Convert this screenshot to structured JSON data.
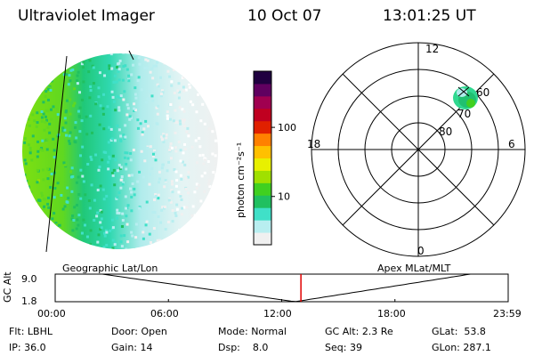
{
  "header": {
    "title": "Ultraviolet Imager",
    "date": "10 Oct 07",
    "time": "13:01:25 UT"
  },
  "colorbar": {
    "label": "photon cm⁻²s⁻¹",
    "ticks": [
      "100",
      "10"
    ],
    "tick_values": [
      100,
      10
    ],
    "range": [
      2,
      650
    ],
    "scale": "log",
    "colors": [
      "#f0f0f0",
      "#b8eef0",
      "#40e0c8",
      "#20c060",
      "#40d020",
      "#a0e000",
      "#e8f000",
      "#ffc000",
      "#ff8000",
      "#e02000",
      "#c00020",
      "#a00050",
      "#600060",
      "#200040"
    ]
  },
  "polar_plot": {
    "mlt_labels": {
      "top": "12",
      "right": "6",
      "bottom": "0",
      "left": "18"
    },
    "lat_labels": [
      "60",
      "70",
      "80"
    ],
    "lat_values": [
      60,
      70,
      80
    ]
  },
  "timeline": {
    "left_label": "Geographic Lat/Lon",
    "right_label": "Apex MLat/MLT",
    "y_axis_label": "GC Alt",
    "y_ticks": [
      "9.0",
      "1.8"
    ],
    "y_values": [
      9.0,
      1.8
    ],
    "x_ticks": [
      "00:00",
      "06:00",
      "12:00",
      "18:00",
      "23:59"
    ],
    "current_time_hours": 13.02,
    "marker_color": "#e00000"
  },
  "info": {
    "filter_label": "Flt:",
    "filter": "LBHL",
    "ip_label": "IP:",
    "ip": "36.0",
    "door_label": "Door:",
    "door": "Open",
    "gain_label": "Gain:",
    "gain": "14",
    "mode_label": "Mode:",
    "mode": "Normal",
    "dsp_label": "Dsp:",
    "dsp": "8.0",
    "gcalt_label": "GC Alt:",
    "gcalt": "2.3 Re",
    "seq_label": "Seq:",
    "seq": "39",
    "glat_label": "GLat:",
    "glat": "53.8",
    "glon_label": "GLon:",
    "glon": "287.1"
  }
}
